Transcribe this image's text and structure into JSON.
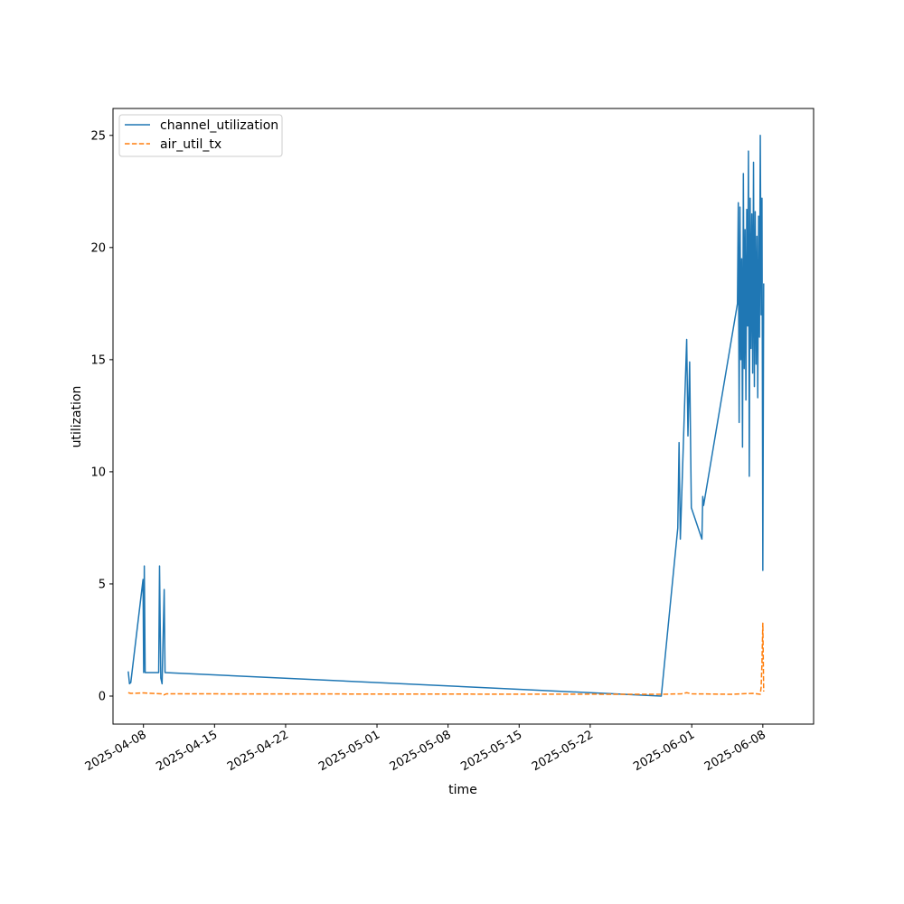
{
  "chart_data": {
    "type": "line",
    "xlabel": "time",
    "ylabel": "utilization",
    "xlim": [
      "2025-04-05",
      "2025-06-13"
    ],
    "ylim": [
      -1.25,
      26.2
    ],
    "x_ticks": [
      "2025-04-08",
      "2025-04-15",
      "2025-04-22",
      "2025-05-01",
      "2025-05-08",
      "2025-05-15",
      "2025-05-22",
      "2025-06-01",
      "2025-06-08"
    ],
    "y_ticks": [
      0,
      5,
      10,
      15,
      20,
      25
    ],
    "grid": false,
    "legend_position": "top-left",
    "series": [
      {
        "name": "channel_utilization",
        "color": "#1f77b4",
        "style": "solid",
        "points": [
          [
            "2025-04-06T12:00",
            1.1
          ],
          [
            "2025-04-06T15:00",
            0.55
          ],
          [
            "2025-04-06T18:00",
            0.6
          ],
          [
            "2025-04-07T23:00",
            5.2
          ],
          [
            "2025-04-08T00:30",
            1.05
          ],
          [
            "2025-04-08T02:00",
            5.8
          ],
          [
            "2025-04-08T04:00",
            1.05
          ],
          [
            "2025-04-09T12:00",
            1.05
          ],
          [
            "2025-04-09T14:00",
            5.8
          ],
          [
            "2025-04-09T17:00",
            0.8
          ],
          [
            "2025-04-09T20:00",
            0.55
          ],
          [
            "2025-04-10T01:00",
            4.75
          ],
          [
            "2025-04-10T03:00",
            1.05
          ],
          [
            "2025-05-29T00:00",
            0.0
          ],
          [
            "2025-05-30T15:00",
            7.5
          ],
          [
            "2025-05-30T18:00",
            11.3
          ],
          [
            "2025-05-30T21:00",
            7.0
          ],
          [
            "2025-05-31T12:00",
            15.9
          ],
          [
            "2025-05-31T15:00",
            11.6
          ],
          [
            "2025-05-31T19:00",
            14.9
          ],
          [
            "2025-05-31T23:00",
            8.4
          ],
          [
            "2025-06-02T00:00",
            7.0
          ],
          [
            "2025-06-02T02:00",
            8.9
          ],
          [
            "2025-06-02T04:00",
            8.5
          ],
          [
            "2025-06-05T12:00",
            17.5
          ],
          [
            "2025-06-05T14:00",
            22.0
          ],
          [
            "2025-06-05T16:00",
            12.2
          ],
          [
            "2025-06-05T18:00",
            21.8
          ],
          [
            "2025-06-05T20:00",
            15.0
          ],
          [
            "2025-06-05T22:00",
            19.5
          ],
          [
            "2025-06-06T00:00",
            11.1
          ],
          [
            "2025-06-06T02:00",
            23.3
          ],
          [
            "2025-06-06T04:00",
            14.6
          ],
          [
            "2025-06-06T06:00",
            20.8
          ],
          [
            "2025-06-06T08:00",
            13.2
          ],
          [
            "2025-06-06T10:00",
            21.7
          ],
          [
            "2025-06-06T12:00",
            16.5
          ],
          [
            "2025-06-06T14:00",
            24.3
          ],
          [
            "2025-06-06T16:00",
            9.8
          ],
          [
            "2025-06-06T18:00",
            22.2
          ],
          [
            "2025-06-06T20:00",
            15.5
          ],
          [
            "2025-06-06T22:00",
            21.5
          ],
          [
            "2025-06-07T00:00",
            14.4
          ],
          [
            "2025-06-07T02:00",
            23.8
          ],
          [
            "2025-06-07T04:00",
            13.8
          ],
          [
            "2025-06-07T06:00",
            21.6
          ],
          [
            "2025-06-07T08:00",
            14.8
          ],
          [
            "2025-06-07T10:00",
            20.5
          ],
          [
            "2025-06-07T12:00",
            13.3
          ],
          [
            "2025-06-07T14:00",
            21.4
          ],
          [
            "2025-06-07T16:00",
            16.0
          ],
          [
            "2025-06-07T18:00",
            25.0
          ],
          [
            "2025-06-07T20:00",
            17.0
          ],
          [
            "2025-06-07T22:00",
            22.2
          ],
          [
            "2025-06-08T00:00",
            5.6
          ],
          [
            "2025-06-08T02:00",
            18.4
          ]
        ]
      },
      {
        "name": "air_util_tx",
        "color": "#ff7f0e",
        "style": "dashed",
        "points": [
          [
            "2025-04-06T12:00",
            0.15
          ],
          [
            "2025-04-06T18:00",
            0.12
          ],
          [
            "2025-04-08T00:00",
            0.14
          ],
          [
            "2025-04-09T18:00",
            0.1
          ],
          [
            "2025-04-10T00:00",
            0.05
          ],
          [
            "2025-04-10T06:00",
            0.1
          ],
          [
            "2025-05-29T00:00",
            0.08
          ],
          [
            "2025-05-31T00:00",
            0.1
          ],
          [
            "2025-05-31T12:00",
            0.15
          ],
          [
            "2025-06-01T00:00",
            0.1
          ],
          [
            "2025-06-05T00:00",
            0.08
          ],
          [
            "2025-06-07T00:00",
            0.12
          ],
          [
            "2025-06-07T18:00",
            0.08
          ],
          [
            "2025-06-07T20:00",
            0.4
          ],
          [
            "2025-06-07T22:00",
            1.5
          ],
          [
            "2025-06-08T00:00",
            3.25
          ],
          [
            "2025-06-08T02:00",
            0.2
          ]
        ]
      }
    ]
  }
}
